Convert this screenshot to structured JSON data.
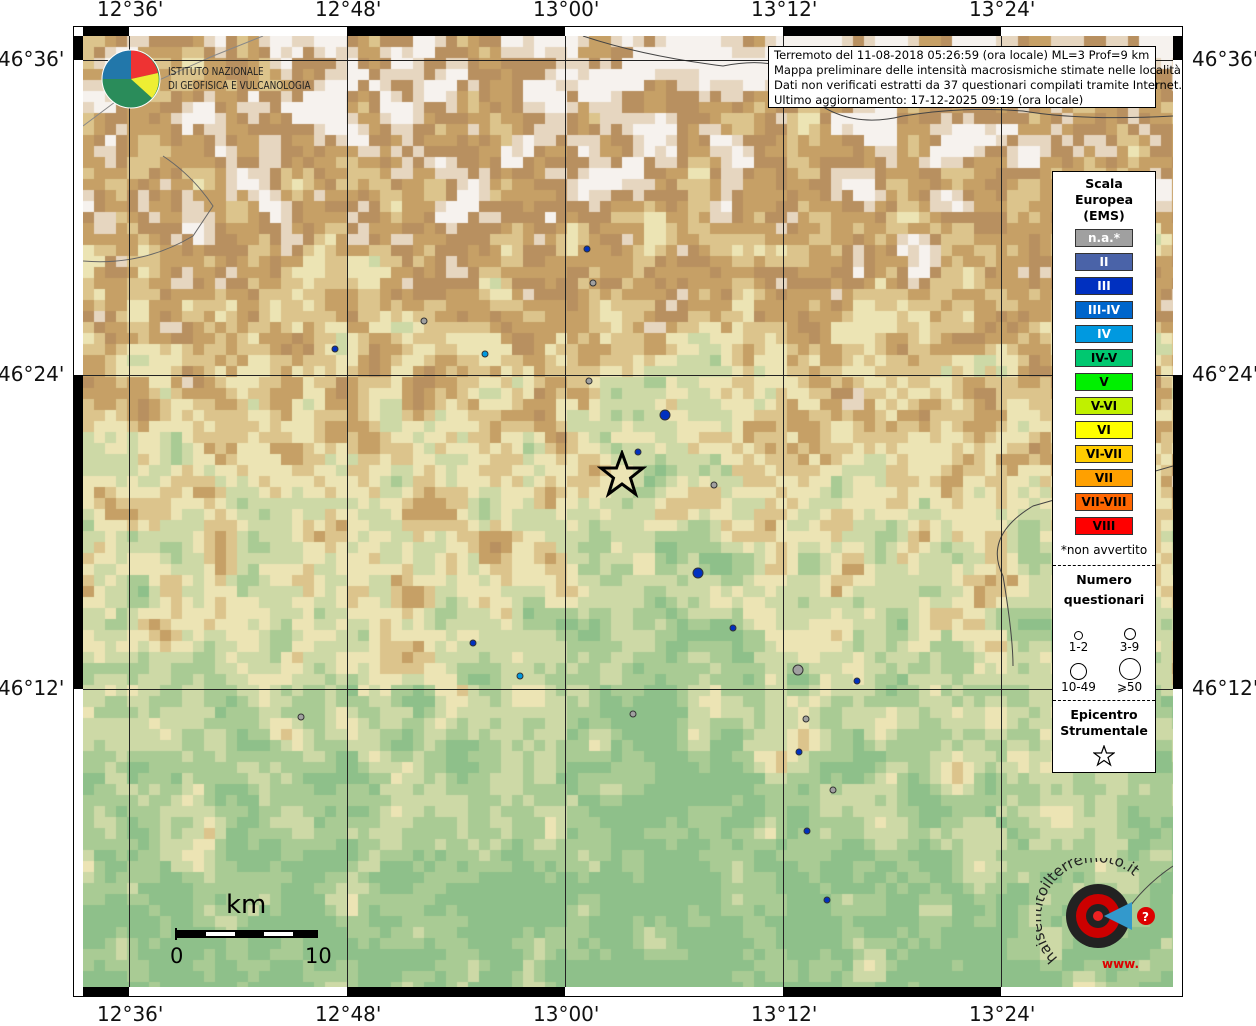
{
  "map": {
    "lon_labels": [
      "12°36'",
      "12°48'",
      "13°00'",
      "13°12'",
      "13°24'"
    ],
    "lat_labels": [
      "46°36'",
      "46°24'",
      "46°12'"
    ],
    "lon_values": [
      12.6,
      12.8,
      13.0,
      13.2,
      13.4
    ],
    "lat_values": [
      46.6,
      46.4,
      46.2
    ]
  },
  "info": {
    "line1": "Terremoto del 11-08-2018 05:26:59 (ora locale) ML=3 Prof=9 km",
    "line2": "Mappa preliminare delle intensità macrosismiche stimate nelle località",
    "line3": "Dati non verificati estratti da 37 questionari compilati tramite Internet.",
    "line4": "Ultimo aggiornamento: 17-12-2025 09:19 (ora locale)"
  },
  "logo_ingv": {
    "line1": "ISTITUTO NAZIONALE",
    "line2": "DI GEOFISICA E VULCANOLOGIA"
  },
  "logo_hsit": {
    "text": "haisentitoilterremoto.it",
    "www": "www."
  },
  "scale_bar": {
    "unit": "km",
    "start": "0",
    "end": "10"
  },
  "legend": {
    "title1": "Scala",
    "title2": "Europea",
    "title3": "(EMS)",
    "classes": [
      {
        "label": "n.a.*",
        "color": "#a0a0a0",
        "text": "#fff"
      },
      {
        "label": "II",
        "color": "#4a63a8",
        "text": "#fff"
      },
      {
        "label": "III",
        "color": "#0030c0",
        "text": "#fff"
      },
      {
        "label": "III-IV",
        "color": "#0066cc",
        "text": "#fff"
      },
      {
        "label": "IV",
        "color": "#0099e0",
        "text": "#fff"
      },
      {
        "label": "IV-V",
        "color": "#00c870",
        "text": "#000"
      },
      {
        "label": "V",
        "color": "#00f000",
        "text": "#000"
      },
      {
        "label": "V-VI",
        "color": "#c0f000",
        "text": "#000"
      },
      {
        "label": "VI",
        "color": "#ffff00",
        "text": "#000"
      },
      {
        "label": "VI-VII",
        "color": "#ffcc00",
        "text": "#000"
      },
      {
        "label": "VII",
        "color": "#ffa000",
        "text": "#000"
      },
      {
        "label": "VII-VIII",
        "color": "#ff6600",
        "text": "#000"
      },
      {
        "label": "VIII",
        "color": "#ff0000",
        "text": "#000"
      }
    ],
    "na_note": "*non avvertito",
    "count_title1": "Numero",
    "count_title2": "questionari",
    "sizes": [
      "1-2",
      "3-9",
      "10-49",
      "⩾50"
    ],
    "epi_title1": "Epicentro",
    "epi_title2": "Strumentale"
  },
  "epicenter": {
    "lon": 13.052,
    "lat": 46.336
  },
  "points": [
    {
      "lon": 13.02,
      "lat": 46.48,
      "ems": "III",
      "n": "1-2"
    },
    {
      "lon": 13.026,
      "lat": 46.458,
      "ems": "n.a.*",
      "n": "1-2"
    },
    {
      "lon": 12.871,
      "lat": 46.434,
      "ems": "n.a.*",
      "n": "1-2"
    },
    {
      "lon": 12.789,
      "lat": 46.416,
      "ems": "III",
      "n": "1-2"
    },
    {
      "lon": 12.927,
      "lat": 46.413,
      "ems": "IV",
      "n": "1-2"
    },
    {
      "lon": 13.022,
      "lat": 46.396,
      "ems": "n.a.*",
      "n": "1-2"
    },
    {
      "lon": 13.092,
      "lat": 46.374,
      "ems": "III",
      "n": "3-9"
    },
    {
      "lon": 13.067,
      "lat": 46.351,
      "ems": "III",
      "n": "1-2"
    },
    {
      "lon": 13.137,
      "lat": 46.33,
      "ems": "n.a.*",
      "n": "1-2"
    },
    {
      "lon": 13.122,
      "lat": 46.274,
      "ems": "III",
      "n": "3-9"
    },
    {
      "lon": 13.154,
      "lat": 46.239,
      "ems": "III",
      "n": "1-2"
    },
    {
      "lon": 12.916,
      "lat": 46.229,
      "ems": "III",
      "n": "1-2"
    },
    {
      "lon": 12.959,
      "lat": 46.208,
      "ems": "IV",
      "n": "1-2"
    },
    {
      "lon": 13.214,
      "lat": 46.212,
      "ems": "n.a.*",
      "n": "3-9"
    },
    {
      "lon": 13.268,
      "lat": 46.205,
      "ems": "III",
      "n": "1-2"
    },
    {
      "lon": 12.758,
      "lat": 46.182,
      "ems": "n.a.*",
      "n": "1-2"
    },
    {
      "lon": 13.062,
      "lat": 46.184,
      "ems": "n.a.*",
      "n": "1-2"
    },
    {
      "lon": 13.221,
      "lat": 46.181,
      "ems": "n.a.*",
      "n": "1-2"
    },
    {
      "lon": 13.215,
      "lat": 46.16,
      "ems": "III",
      "n": "1-2"
    },
    {
      "lon": 13.246,
      "lat": 46.136,
      "ems": "n.a.*",
      "n": "1-2"
    },
    {
      "lon": 13.222,
      "lat": 46.11,
      "ems": "III",
      "n": "1-2"
    },
    {
      "lon": 13.24,
      "lat": 46.066,
      "ems": "III",
      "n": "1-2"
    }
  ]
}
